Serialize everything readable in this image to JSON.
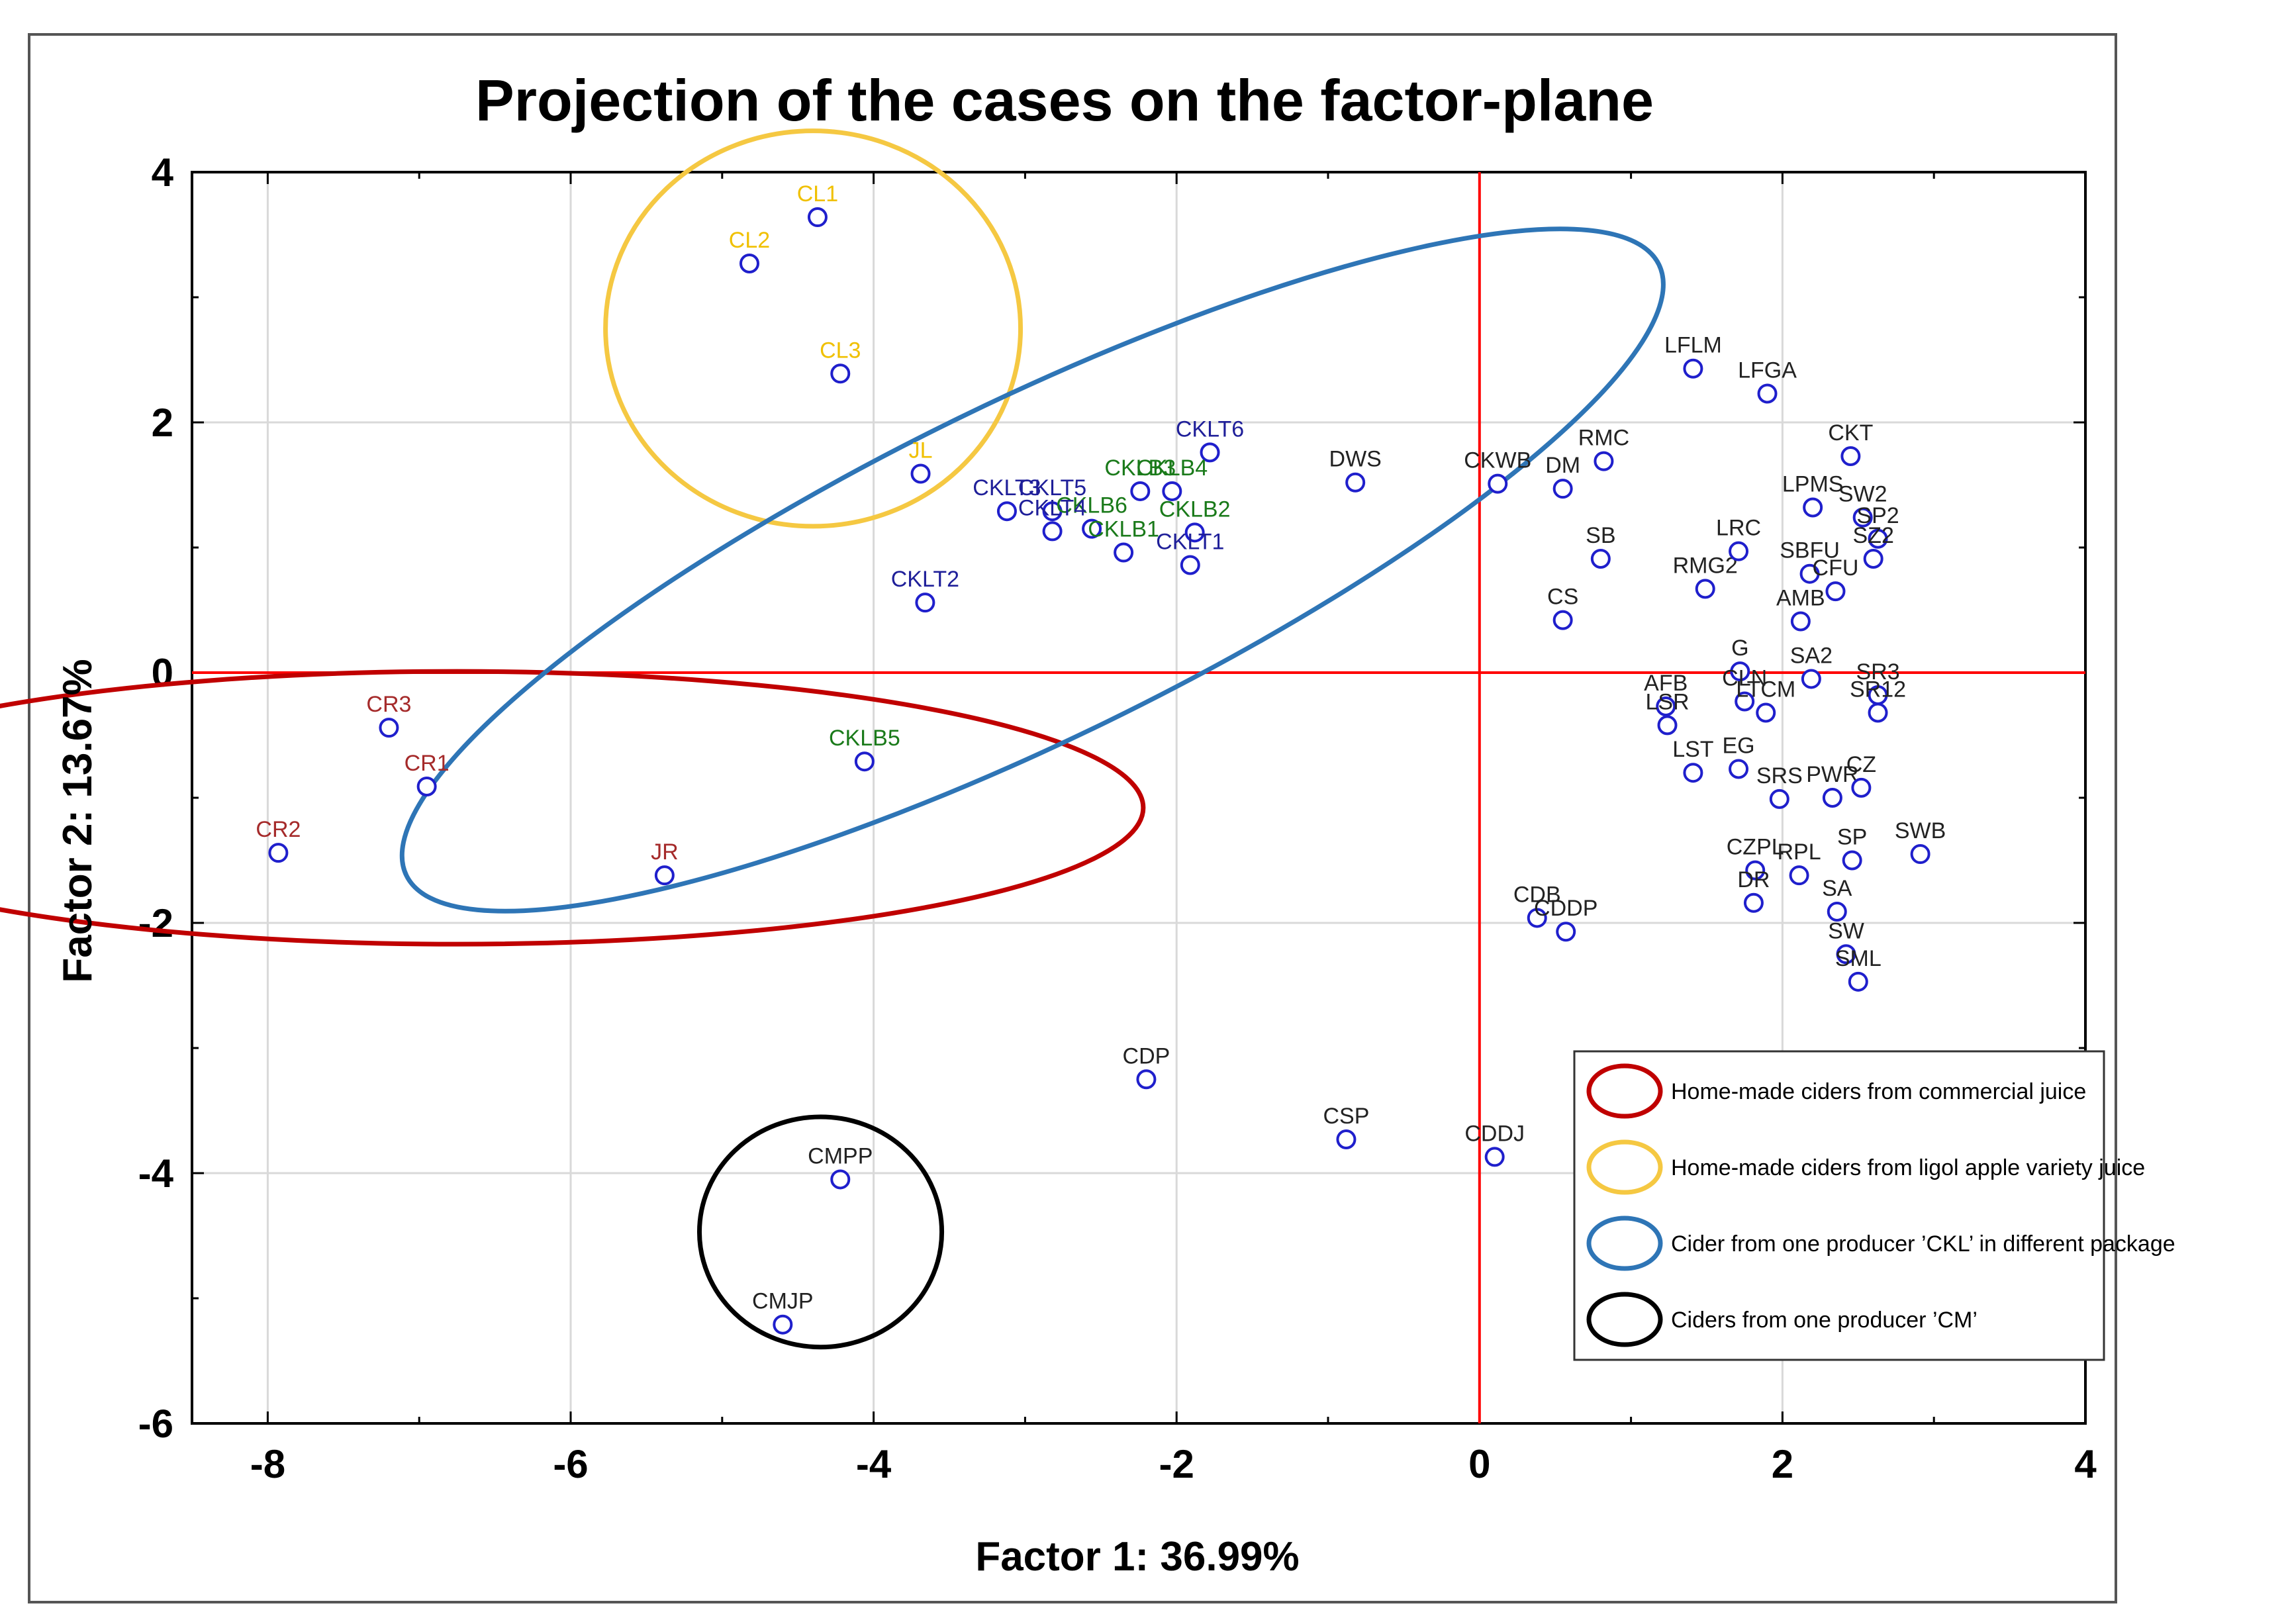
{
  "chart_data": {
    "type": "scatter",
    "title": "Projection of the cases on the factor-plane",
    "xlabel": "Factor 1: 36.99%",
    "ylabel": "Factor 2: 13.67%",
    "xlim": [
      -8.5,
      4
    ],
    "ylim": [
      -6,
      4
    ],
    "xticks": [
      -8,
      -6,
      -4,
      -2,
      0,
      2,
      4
    ],
    "yticks": [
      4,
      2,
      0,
      -2,
      -4,
      -6
    ],
    "grid": true,
    "reference_lines": {
      "x": 0,
      "y": 0,
      "color": "#ff0000"
    },
    "point_color": "#1f1fcc",
    "points": [
      {
        "label": "CL1",
        "x": -4.37,
        "y": 3.64,
        "color": "#f0c000"
      },
      {
        "label": "CL2",
        "x": -4.82,
        "y": 3.27,
        "color": "#f0c000"
      },
      {
        "label": "CL3",
        "x": -4.22,
        "y": 2.39,
        "color": "#f0c000"
      },
      {
        "label": "JL",
        "x": -3.69,
        "y": 1.59,
        "color": "#f0c000"
      },
      {
        "label": "CR3",
        "x": -7.2,
        "y": -0.44,
        "color": "#a52a2a"
      },
      {
        "label": "CR1",
        "x": -6.95,
        "y": -0.91,
        "color": "#a52a2a"
      },
      {
        "label": "CR2",
        "x": -7.93,
        "y": -1.44,
        "color": "#a52a2a"
      },
      {
        "label": "JR",
        "x": -5.38,
        "y": -1.62,
        "color": "#a52a2a"
      },
      {
        "label": "CKLT6",
        "x": -1.78,
        "y": 1.76,
        "color": "#1f1f99"
      },
      {
        "label": "CKLB3",
        "x": -2.24,
        "y": 1.45,
        "color": "#1a7a1a"
      },
      {
        "label": "CKLB4",
        "x": -2.03,
        "y": 1.45,
        "color": "#1a7a1a"
      },
      {
        "label": "CKLT3",
        "x": -3.12,
        "y": 1.29,
        "color": "#1f1f99"
      },
      {
        "label": "CKLT5",
        "x": -2.82,
        "y": 1.29,
        "color": "#1f1f99"
      },
      {
        "label": "CKLB6",
        "x": -2.56,
        "y": 1.15,
        "color": "#1a7a1a"
      },
      {
        "label": "CKLB2",
        "x": -1.88,
        "y": 1.12,
        "color": "#1a7a1a"
      },
      {
        "label": "CKLB1",
        "x": -2.35,
        "y": 0.96,
        "color": "#1a7a1a"
      },
      {
        "label": "CKLT4",
        "x": -2.82,
        "y": 1.13,
        "color": "#1f1f99"
      },
      {
        "label": "CKLT1",
        "x": -1.91,
        "y": 0.86,
        "color": "#1f1f99"
      },
      {
        "label": "CKLT2",
        "x": -3.66,
        "y": 0.56,
        "color": "#1f1f99"
      },
      {
        "label": "CKLB5",
        "x": -4.06,
        "y": -0.71,
        "color": "#1a7a1a"
      },
      {
        "label": "CDP",
        "x": -2.2,
        "y": -3.25,
        "color": "#222222"
      },
      {
        "label": "CMPP",
        "x": -4.22,
        "y": -4.05,
        "color": "#222222"
      },
      {
        "label": "CMJP",
        "x": -4.6,
        "y": -5.21,
        "color": "#222222"
      },
      {
        "label": "DWS",
        "x": -0.82,
        "y": 1.52,
        "color": "#222222"
      },
      {
        "label": "CKWB",
        "x": 0.12,
        "y": 1.51,
        "color": "#222222"
      },
      {
        "label": "DM",
        "x": 0.55,
        "y": 1.47,
        "color": "#222222"
      },
      {
        "label": "RMC",
        "x": 0.82,
        "y": 1.69,
        "color": "#222222"
      },
      {
        "label": "SB",
        "x": 0.8,
        "y": 0.91,
        "color": "#222222"
      },
      {
        "label": "CS",
        "x": 0.55,
        "y": 0.42,
        "color": "#222222"
      },
      {
        "label": "LFLM",
        "x": 1.41,
        "y": 2.43,
        "color": "#222222"
      },
      {
        "label": "LFGA",
        "x": 1.9,
        "y": 2.23,
        "color": "#222222"
      },
      {
        "label": "CKT",
        "x": 2.45,
        "y": 1.73,
        "color": "#222222"
      },
      {
        "label": "RMG2",
        "x": 1.49,
        "y": 0.67,
        "color": "#222222"
      },
      {
        "label": "CSP",
        "x": -0.88,
        "y": -3.73,
        "color": "#222222"
      },
      {
        "label": "CDDJ",
        "x": 0.1,
        "y": -3.87,
        "color": "#222222"
      },
      {
        "label": "CDB",
        "x": 0.38,
        "y": -1.96,
        "color": "#222222"
      },
      {
        "label": "CDDP",
        "x": 0.57,
        "y": -2.07,
        "color": "#222222"
      },
      {
        "label": "LRC",
        "x": 1.71,
        "y": 0.97,
        "color": "#222222"
      },
      {
        "label": "LPMS",
        "x": 2.2,
        "y": 1.32,
        "color": "#222222"
      },
      {
        "label": "SW2",
        "x": 2.53,
        "y": 1.24,
        "color": "#222222"
      },
      {
        "label": "SP2",
        "x": 2.63,
        "y": 1.07,
        "color": "#222222"
      },
      {
        "label": "SZ2",
        "x": 2.6,
        "y": 0.91,
        "color": "#222222"
      },
      {
        "label": "SBFU",
        "x": 2.18,
        "y": 0.79,
        "color": "#222222"
      },
      {
        "label": "CFU",
        "x": 2.35,
        "y": 0.65,
        "color": "#222222"
      },
      {
        "label": "AMB",
        "x": 2.12,
        "y": 0.41,
        "color": "#222222"
      },
      {
        "label": "G",
        "x": 1.72,
        "y": 0.01,
        "color": "#222222"
      },
      {
        "label": "SA2",
        "x": 2.19,
        "y": -0.05,
        "color": "#222222"
      },
      {
        "label": "AFB",
        "x": 1.23,
        "y": -0.27,
        "color": "#222222"
      },
      {
        "label": "LSR",
        "x": 1.24,
        "y": -0.42,
        "color": "#222222"
      },
      {
        "label": "CLN",
        "x": 1.75,
        "y": -0.23,
        "color": "#222222"
      },
      {
        "label": "LTCM",
        "x": 1.89,
        "y": -0.32,
        "color": "#222222"
      },
      {
        "label": "SR3",
        "x": 2.63,
        "y": -0.18,
        "color": "#222222"
      },
      {
        "label": "SR12",
        "x": 2.63,
        "y": -0.32,
        "color": "#222222"
      },
      {
        "label": "LST",
        "x": 1.41,
        "y": -0.8,
        "color": "#222222"
      },
      {
        "label": "EG",
        "x": 1.71,
        "y": -0.77,
        "color": "#222222"
      },
      {
        "label": "SRS",
        "x": 1.98,
        "y": -1.01,
        "color": "#222222"
      },
      {
        "label": "PWR",
        "x": 2.33,
        "y": -1.0,
        "color": "#222222"
      },
      {
        "label": "CZ",
        "x": 2.52,
        "y": -0.92,
        "color": "#222222"
      },
      {
        "label": "SWB",
        "x": 2.91,
        "y": -1.45,
        "color": "#222222"
      },
      {
        "label": "SP",
        "x": 2.46,
        "y": -1.5,
        "color": "#222222"
      },
      {
        "label": "CZPL",
        "x": 1.82,
        "y": -1.58,
        "color": "#222222"
      },
      {
        "label": "RPL",
        "x": 2.11,
        "y": -1.62,
        "color": "#222222"
      },
      {
        "label": "DR",
        "x": 1.81,
        "y": -1.84,
        "color": "#222222"
      },
      {
        "label": "SA",
        "x": 2.36,
        "y": -1.91,
        "color": "#222222"
      },
      {
        "label": "SW",
        "x": 2.42,
        "y": -2.25,
        "color": "#222222"
      },
      {
        "label": "SML",
        "x": 2.5,
        "y": -2.47,
        "color": "#222222"
      }
    ],
    "groups": [
      {
        "name": "Home-made ciders from commercial juice",
        "color": "#c00000",
        "center": [
          -6.75,
          -1.08
        ],
        "radii": [
          4.53,
          1.09
        ],
        "angle": 0
      },
      {
        "name": "Home-made ciders from ligol apple variety juice",
        "color": "#f5c842",
        "center": [
          -4.4,
          2.75
        ],
        "radii": [
          1.37,
          1.58
        ],
        "angle": 0
      },
      {
        "name": "Cider from one producer ’CKL’  in different package",
        "color": "#2e75b6",
        "center": [
          -2.95,
          0.82
        ],
        "radii": [
          4.6,
          1.35
        ],
        "angle": -26
      },
      {
        "name": "Ciders from one producer ’CM’",
        "color": "#000000",
        "center": [
          -4.35,
          -4.47
        ],
        "radii": [
          0.8,
          0.92
        ],
        "angle": 0
      }
    ]
  }
}
